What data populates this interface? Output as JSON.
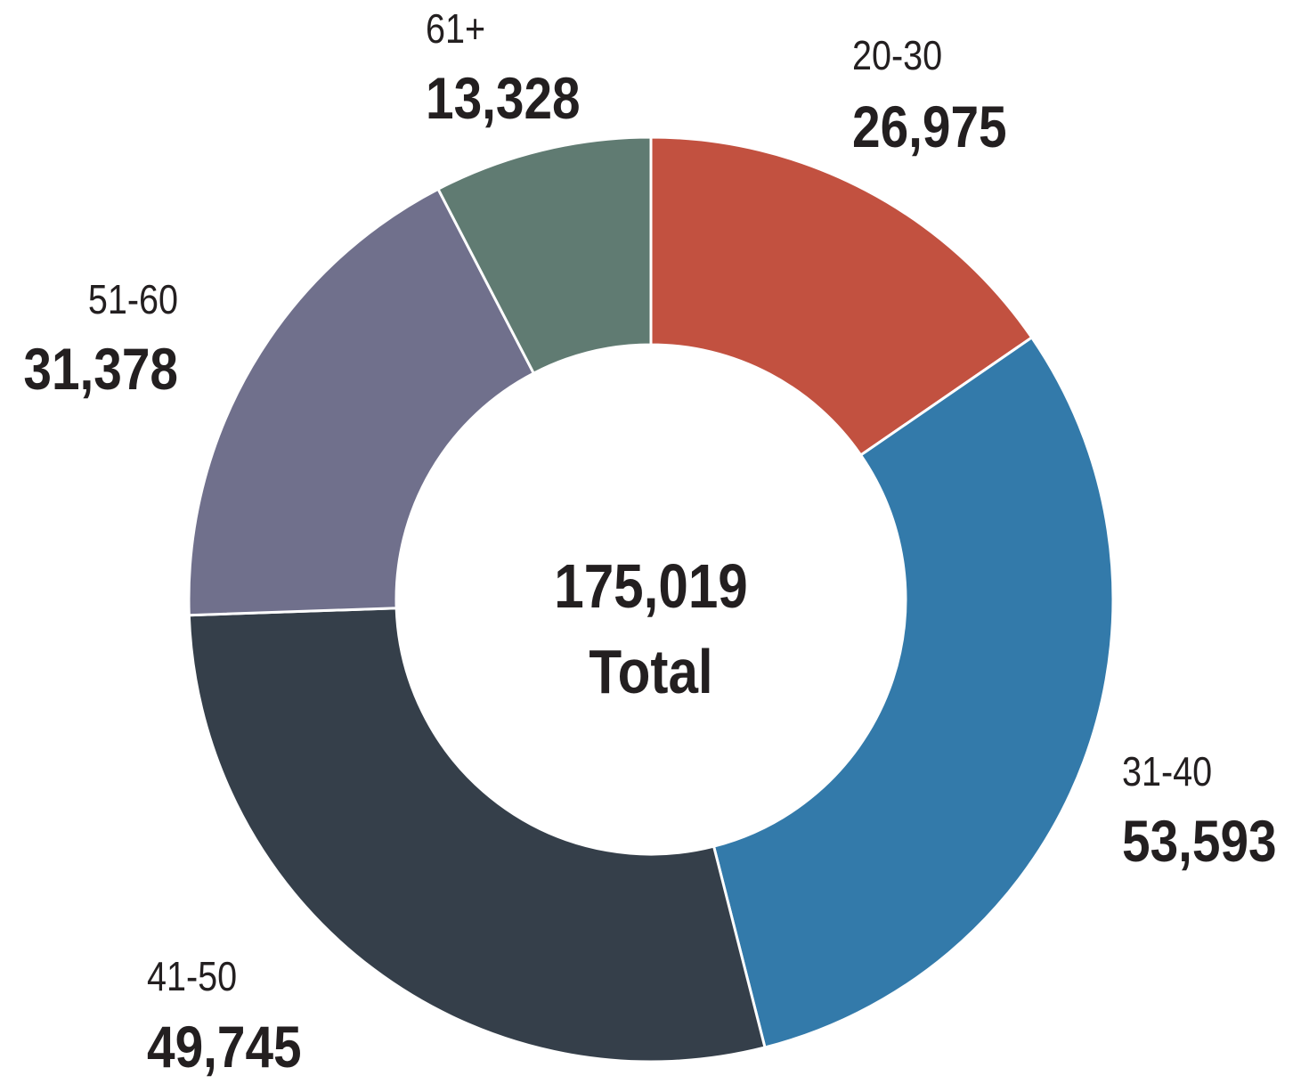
{
  "chart_data": {
    "type": "pie",
    "variant": "donut",
    "categories": [
      "20-30",
      "31-40",
      "41-50",
      "51-60",
      "61+"
    ],
    "values": [
      26975,
      53593,
      49745,
      31378,
      13328
    ],
    "value_labels": [
      "26,975",
      "53,593",
      "49,745",
      "31,378",
      "13,328"
    ],
    "colors": [
      "#C25140",
      "#337AAA",
      "#353F4A",
      "#70708C",
      "#607B72"
    ],
    "center_value": "175,019",
    "center_label": "Total",
    "start": "top",
    "direction": "clockwise"
  }
}
